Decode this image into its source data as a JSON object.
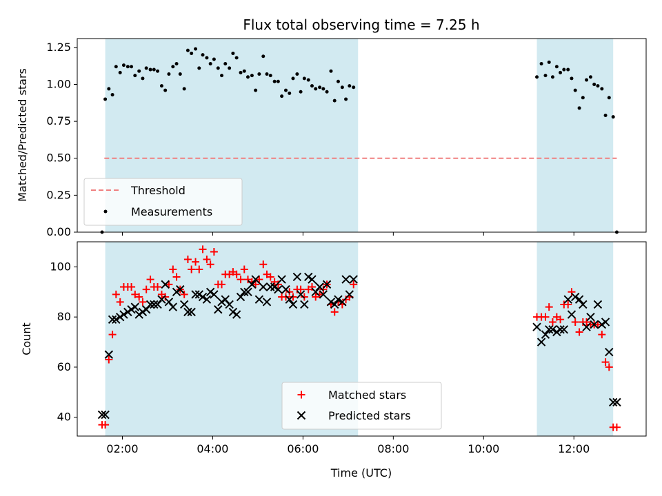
{
  "title": "Flux total observing time = 7.25 h",
  "chart_data": [
    {
      "type": "scatter",
      "ylabel": "Matched/Predicted stars",
      "ylim": [
        0,
        1.31
      ],
      "yticks": [
        0.0,
        0.25,
        0.5,
        0.75,
        1.0,
        1.25
      ],
      "ytick_labels": [
        "0.00",
        "0.25",
        "0.50",
        "0.75",
        "1.00",
        "1.25"
      ],
      "threshold": 0.5,
      "threshold_range": [
        1.6,
        12.95
      ],
      "threshold_color": "#f08080",
      "point_color": "#000000",
      "legend": {
        "placement": "lower-left",
        "entries": [
          "Threshold",
          "Measurements"
        ]
      },
      "series": [
        {
          "name": "Measurements",
          "x": [
            1.55,
            1.62,
            1.7,
            1.78,
            1.86,
            1.95,
            2.03,
            2.12,
            2.2,
            2.28,
            2.37,
            2.45,
            2.53,
            2.62,
            2.7,
            2.78,
            2.87,
            2.95,
            3.03,
            3.12,
            3.2,
            3.28,
            3.37,
            3.45,
            3.53,
            3.62,
            3.7,
            3.78,
            3.87,
            3.95,
            4.03,
            4.12,
            4.2,
            4.28,
            4.37,
            4.45,
            4.53,
            4.62,
            4.7,
            4.78,
            4.87,
            4.95,
            5.03,
            5.12,
            5.2,
            5.28,
            5.37,
            5.45,
            5.53,
            5.62,
            5.7,
            5.78,
            5.87,
            5.95,
            6.03,
            6.12,
            6.2,
            6.28,
            6.37,
            6.45,
            6.53,
            6.62,
            6.7,
            6.78,
            6.87,
            6.95,
            7.03,
            7.12,
            11.18,
            11.28,
            11.37,
            11.45,
            11.53,
            11.62,
            11.7,
            11.78,
            11.87,
            11.95,
            12.03,
            12.12,
            12.2,
            12.28,
            12.37,
            12.45,
            12.53,
            12.62,
            12.7,
            12.78,
            12.87,
            12.95
          ],
          "y": [
            0.0,
            0.9,
            0.97,
            0.93,
            1.12,
            1.08,
            1.13,
            1.12,
            1.12,
            1.06,
            1.09,
            1.04,
            1.11,
            1.1,
            1.1,
            1.09,
            0.99,
            0.96,
            1.07,
            1.12,
            1.14,
            1.07,
            0.97,
            1.23,
            1.21,
            1.24,
            1.11,
            1.2,
            1.18,
            1.14,
            1.17,
            1.11,
            1.06,
            1.14,
            1.11,
            1.21,
            1.18,
            1.08,
            1.09,
            1.05,
            1.06,
            0.96,
            1.07,
            1.19,
            1.07,
            1.06,
            1.02,
            1.02,
            0.92,
            0.96,
            0.94,
            1.04,
            1.07,
            0.95,
            1.04,
            1.03,
            0.99,
            0.97,
            0.98,
            0.97,
            0.95,
            1.09,
            0.89,
            1.02,
            0.98,
            0.9,
            0.99,
            0.98,
            1.05,
            1.14,
            1.06,
            1.15,
            1.05,
            1.12,
            1.08,
            1.1,
            1.1,
            1.04,
            0.96,
            0.84,
            0.91,
            1.03,
            1.05,
            1.0,
            0.99,
            0.97,
            0.79,
            0.91,
            0.78,
            0.0
          ]
        }
      ]
    },
    {
      "type": "scatter",
      "xlabel": "Time (UTC)",
      "ylabel": "Count",
      "ylim": [
        32.5,
        110
      ],
      "yticks": [
        40,
        60,
        80,
        100
      ],
      "ytick_labels": [
        "40",
        "60",
        "80",
        "100"
      ],
      "xlim": [
        1.0,
        13.6
      ],
      "xticks": [
        2,
        4,
        6,
        8,
        10,
        12
      ],
      "xtick_labels": [
        "02:00",
        "04:00",
        "06:00",
        "08:00",
        "10:00",
        "12:00"
      ],
      "shaded_intervals": [
        [
          1.62,
          7.22
        ],
        [
          11.18,
          12.87
        ]
      ],
      "shade_color": "#add8e6",
      "legend": {
        "placement": "lower-center",
        "entries": [
          "Matched stars",
          "Predicted stars"
        ]
      },
      "series": [
        {
          "name": "Matched stars",
          "marker": "plus",
          "color": "#ff0000",
          "x": [
            1.55,
            1.62,
            1.7,
            1.78,
            1.86,
            1.95,
            2.03,
            2.12,
            2.2,
            2.28,
            2.37,
            2.45,
            2.53,
            2.62,
            2.7,
            2.78,
            2.87,
            2.95,
            3.03,
            3.12,
            3.2,
            3.28,
            3.37,
            3.45,
            3.53,
            3.62,
            3.7,
            3.78,
            3.87,
            3.95,
            4.03,
            4.12,
            4.2,
            4.28,
            4.37,
            4.45,
            4.53,
            4.62,
            4.7,
            4.78,
            4.87,
            4.95,
            5.03,
            5.12,
            5.2,
            5.28,
            5.37,
            5.45,
            5.53,
            5.62,
            5.7,
            5.78,
            5.87,
            5.95,
            6.03,
            6.12,
            6.2,
            6.28,
            6.37,
            6.45,
            6.53,
            6.62,
            6.7,
            6.78,
            6.87,
            6.95,
            7.03,
            7.12,
            11.18,
            11.28,
            11.37,
            11.45,
            11.53,
            11.62,
            11.7,
            11.78,
            11.87,
            11.95,
            12.03,
            12.12,
            12.2,
            12.28,
            12.37,
            12.45,
            12.53,
            12.62,
            12.7,
            12.78,
            12.87,
            12.95
          ],
          "y": [
            37,
            37,
            63,
            73,
            89,
            86,
            92,
            92,
            92,
            89,
            88,
            86,
            91,
            95,
            92,
            92,
            89,
            88,
            93,
            99,
            96,
            91,
            89,
            103,
            99,
            102,
            99,
            107,
            103,
            101,
            106,
            93,
            93,
            97,
            97,
            98,
            97,
            95,
            99,
            95,
            94,
            93,
            95,
            101,
            97,
            96,
            94,
            93,
            88,
            88,
            90,
            88,
            91,
            91,
            88,
            91,
            92,
            88,
            89,
            91,
            93,
            85,
            82,
            86,
            85,
            87,
            88,
            93,
            80,
            80,
            80,
            84,
            78,
            80,
            79,
            85,
            85,
            90,
            78,
            74,
            78,
            78,
            77,
            77,
            77,
            73,
            62,
            60,
            36,
            36
          ]
        },
        {
          "name": "Predicted stars",
          "marker": "x",
          "color": "#000000",
          "x": [
            1.55,
            1.62,
            1.7,
            1.78,
            1.86,
            1.95,
            2.03,
            2.12,
            2.2,
            2.28,
            2.37,
            2.45,
            2.53,
            2.62,
            2.7,
            2.78,
            2.87,
            2.95,
            3.03,
            3.12,
            3.2,
            3.28,
            3.37,
            3.45,
            3.53,
            3.62,
            3.7,
            3.78,
            3.87,
            3.95,
            4.03,
            4.12,
            4.2,
            4.28,
            4.37,
            4.45,
            4.53,
            4.62,
            4.7,
            4.78,
            4.87,
            4.95,
            5.03,
            5.12,
            5.2,
            5.28,
            5.37,
            5.45,
            5.53,
            5.62,
            5.7,
            5.78,
            5.87,
            5.95,
            6.03,
            6.12,
            6.2,
            6.28,
            6.37,
            6.45,
            6.53,
            6.62,
            6.7,
            6.78,
            6.87,
            6.95,
            7.03,
            7.12,
            11.18,
            11.28,
            11.37,
            11.45,
            11.53,
            11.62,
            11.7,
            11.78,
            11.87,
            11.95,
            12.03,
            12.12,
            12.2,
            12.28,
            12.37,
            12.45,
            12.53,
            12.62,
            12.7,
            12.78,
            12.87,
            12.95
          ],
          "y": [
            41,
            41,
            65,
            79,
            79,
            80,
            81,
            82,
            83,
            84,
            81,
            82,
            83,
            85,
            85,
            85,
            87,
            93,
            86,
            84,
            90,
            91,
            85,
            82,
            82,
            89,
            89,
            88,
            87,
            90,
            89,
            83,
            86,
            87,
            85,
            82,
            81,
            88,
            90,
            90,
            93,
            95,
            87,
            92,
            86,
            92,
            92,
            91,
            95,
            91,
            87,
            85,
            96,
            89,
            85,
            96,
            95,
            90,
            92,
            89,
            93,
            86,
            85,
            87,
            86,
            95,
            89,
            95,
            76,
            70,
            73,
            75,
            75,
            74,
            75,
            75,
            87,
            81,
            88,
            87,
            85,
            76,
            80,
            77,
            85,
            77,
            78,
            66,
            46,
            46
          ]
        }
      ]
    }
  ]
}
